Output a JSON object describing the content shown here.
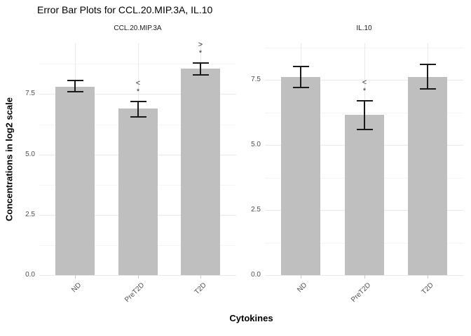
{
  "chart_data": {
    "type": "bar",
    "title": "Error Bar Plots for CCL.20.MIP.3A, IL.10",
    "xlabel": "Cytokines",
    "ylabel": "Concentrations in log2 scale",
    "categories": [
      "ND",
      "PreT2D",
      "T2D"
    ],
    "yticks": [
      0.0,
      2.5,
      5.0,
      7.5
    ],
    "ytick_labels": [
      "0.0",
      "2.5",
      "5.0",
      "7.5"
    ],
    "grid": true,
    "legend": "none",
    "bar_color": "#bfbfbf",
    "errorbar_color": "#1a1a1a",
    "facets": [
      {
        "label": "CCL.20.MIP.3A",
        "ylim": [
          0,
          9.6
        ],
        "bars": [
          {
            "category": "ND",
            "mean": 7.8,
            "err_low": 7.6,
            "err_high": 8.05,
            "annotation": []
          },
          {
            "category": "PreT2D",
            "mean": 6.9,
            "err_low": 6.55,
            "err_high": 7.2,
            "annotation": [
              "<",
              "*"
            ]
          },
          {
            "category": "T2D",
            "mean": 8.55,
            "err_low": 8.3,
            "err_high": 8.8,
            "annotation": [
              ">",
              "*"
            ]
          }
        ]
      },
      {
        "label": "IL.10",
        "ylim": [
          0,
          8.9
        ],
        "bars": [
          {
            "category": "ND",
            "mean": 7.6,
            "err_low": 7.2,
            "err_high": 8.0,
            "annotation": []
          },
          {
            "category": "PreT2D",
            "mean": 6.15,
            "err_low": 5.6,
            "err_high": 6.7,
            "annotation": [
              "<",
              "*"
            ]
          },
          {
            "category": "T2D",
            "mean": 7.6,
            "err_low": 7.15,
            "err_high": 8.1,
            "annotation": []
          }
        ]
      }
    ]
  }
}
